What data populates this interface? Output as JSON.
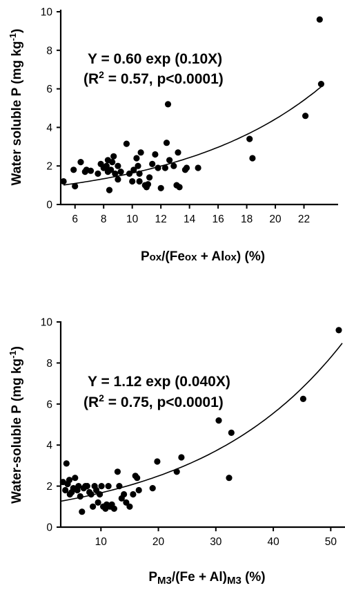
{
  "chart_data": [
    {
      "type": "scatter",
      "ylabel_main": "Water soluble P (mg kg",
      "ylabel_sup": "-1",
      "ylabel_end": ")",
      "xlabel_parts": [
        "P",
        "ox",
        "/(Fe",
        "ox",
        " + Al",
        "ox",
        ") (%)"
      ],
      "equation": "Y = 0.60 exp (0.10X)",
      "r2_prefix": "(R",
      "r2_sup": "2",
      "r2_suffix": " = 0.57, p<0.0001)",
      "xlim": [
        5,
        24
      ],
      "ylim": [
        0,
        10
      ],
      "xticks": [
        "6",
        "8",
        "10",
        "12",
        "14",
        "16",
        "18",
        "20",
        "22"
      ],
      "yticks": [
        "0",
        "2",
        "4",
        "6",
        "8",
        "10"
      ],
      "fit": {
        "a": 0.6,
        "b": 0.1,
        "x_range": [
          5.2,
          23.2
        ]
      },
      "x": [
        5.2,
        5.9,
        6.0,
        6.4,
        6.7,
        6.8,
        7.1,
        7.6,
        7.8,
        8.0,
        8.2,
        8.3,
        8.3,
        8.4,
        8.5,
        8.6,
        8.7,
        8.8,
        9.0,
        9.0,
        9.2,
        9.6,
        9.8,
        10.0,
        10.1,
        10.3,
        10.4,
        10.5,
        10.5,
        10.6,
        10.9,
        11.0,
        11.1,
        11.2,
        11.4,
        11.6,
        11.8,
        12.0,
        12.3,
        12.4,
        12.5,
        12.6,
        12.9,
        13.1,
        13.2,
        13.3,
        13.7,
        13.8,
        14.6,
        18.2,
        18.4,
        22.1,
        23.1,
        23.2
      ],
      "y": [
        1.2,
        1.8,
        0.95,
        2.2,
        1.7,
        1.8,
        1.75,
        1.6,
        2.1,
        1.9,
        2.0,
        2.3,
        1.7,
        0.75,
        1.8,
        2.2,
        2.5,
        1.6,
        1.3,
        2.0,
        1.7,
        3.15,
        1.6,
        1.2,
        1.8,
        2.4,
        2.0,
        1.6,
        1.2,
        2.7,
        1.0,
        0.9,
        1.05,
        1.4,
        2.1,
        2.6,
        1.9,
        0.85,
        1.9,
        3.2,
        5.2,
        2.3,
        2.0,
        1.0,
        2.7,
        0.9,
        1.8,
        1.9,
        1.9,
        3.4,
        2.4,
        4.6,
        9.6,
        6.25
      ]
    },
    {
      "type": "scatter",
      "ylabel_main": "Water-soluble P (mg kg",
      "ylabel_sup": "-1",
      "ylabel_end": ")",
      "xlabel_parts": [
        "P",
        "M3",
        "/(Fe + Al)",
        "M3",
        " (%)"
      ],
      "equation": "Y = 1.12 exp (0.040X)",
      "r2_prefix": "(R",
      "r2_sup": "2",
      "r2_suffix": " = 0.75, p<0.0001)",
      "xlim": [
        3,
        52
      ],
      "ylim": [
        0,
        10
      ],
      "xticks": [
        "10",
        "20",
        "30",
        "40",
        "50"
      ],
      "yticks": [
        "0",
        "2",
        "4",
        "6",
        "8",
        "10"
      ],
      "fit": {
        "a": 1.12,
        "b": 0.04,
        "x_range": [
          3,
          52
        ]
      },
      "x": [
        3.4,
        3.8,
        4.0,
        4.2,
        4.5,
        4.6,
        4.9,
        5.2,
        5.5,
        5.9,
        6.1,
        6.4,
        6.7,
        7.0,
        7.3,
        7.6,
        8.0,
        8.3,
        8.6,
        8.9,
        9.2,
        9.5,
        9.8,
        10.1,
        10.4,
        10.8,
        11.0,
        11.3,
        11.6,
        11.9,
        12.3,
        12.9,
        13.2,
        13.6,
        14.0,
        14.4,
        15.0,
        15.6,
        16.0,
        16.3,
        16.6,
        19.0,
        19.8,
        23.2,
        24.0,
        30.5,
        32.3,
        32.7,
        45.2,
        51.4
      ],
      "y": [
        2.2,
        1.8,
        3.1,
        2.1,
        2.3,
        1.6,
        1.7,
        1.9,
        2.4,
        1.8,
        2.0,
        1.5,
        0.75,
        1.9,
        2.0,
        2.0,
        1.7,
        1.6,
        1.0,
        2.0,
        1.8,
        1.2,
        1.6,
        2.0,
        1.0,
        0.9,
        1.1,
        2.0,
        1.0,
        1.1,
        0.9,
        2.7,
        2.0,
        1.4,
        1.6,
        1.2,
        1.0,
        1.6,
        2.5,
        2.4,
        1.8,
        1.9,
        3.2,
        2.7,
        3.4,
        5.2,
        2.4,
        4.6,
        6.25,
        9.6
      ]
    }
  ]
}
